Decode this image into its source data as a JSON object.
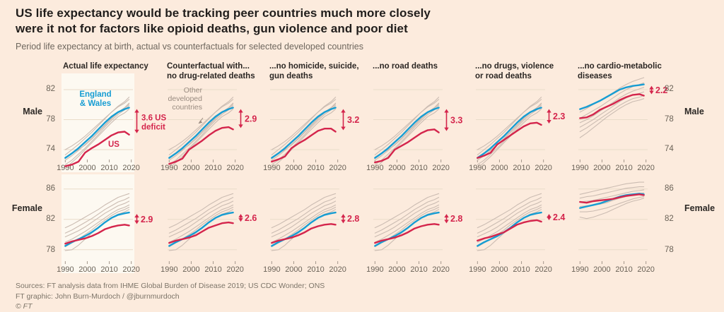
{
  "header": {
    "title_line1": "US life expectancy would be tracking peer countries much more closely",
    "title_line2": "were it not for factors like opioid deaths, gun violence and poor diet",
    "subtitle": "Period life expectancy at birth, actual vs counterfactuals for selected developed countries"
  },
  "footer": {
    "sources": "Sources: FT analysis data from IHME Global Burden of Disease 2019; US CDC Wonder; ONS",
    "credit": "FT graphic: John Burn-Murdoch / @jburnmurdoch",
    "copyright": "© FT"
  },
  "colors": {
    "background": "#fcebdd",
    "panel_highlight": "#fdf9f1",
    "us_line": "#d4254c",
    "england_wales_line": "#169dd3",
    "other_lines": "#cbbcb2",
    "gridline": "#e9dcc9",
    "tick": "#a3968a",
    "tick_label": "#6a6257",
    "annotation": "#d4254c",
    "others_label": "#998b80"
  },
  "chart_data": {
    "type": "line",
    "x": {
      "years": [
        1990,
        1993,
        1996,
        1999,
        2002,
        2005,
        2008,
        2011,
        2014,
        2017,
        2019
      ],
      "tick_years": [
        1990,
        2000,
        2010,
        2020
      ],
      "tick_labels": [
        "1990",
        "2000",
        "2010",
        "2020"
      ],
      "domain": [
        1989.25,
        2020.75
      ]
    },
    "series_labels": {
      "us": "US",
      "england_wales": "England & Wales",
      "others": "Other developed countries"
    },
    "columns": [
      {
        "title_lines": [
          "Actual life expectancy"
        ]
      },
      {
        "title_lines": [
          "Counterfactual with...",
          "no drug-related deaths"
        ]
      },
      {
        "title_lines": [
          "...no homicide, suicide,",
          "gun deaths"
        ]
      },
      {
        "title_lines": [
          "...no road deaths"
        ]
      },
      {
        "title_lines": [
          "...no drugs, violence",
          "or road deaths"
        ]
      },
      {
        "title_lines": [
          "...no cardio-metabolic",
          "diseases"
        ]
      }
    ],
    "rows": [
      {
        "label": "Male",
        "y_ticks": [
          82,
          78,
          74
        ],
        "ew_base": [
          72.9,
          73.5,
          74.2,
          75.0,
          75.8,
          76.7,
          77.6,
          78.4,
          79.0,
          79.4,
          79.6
        ],
        "ew_cardio": [
          79.4,
          79.7,
          80.1,
          80.5,
          81.0,
          81.5,
          82.0,
          82.3,
          82.5,
          82.6,
          82.7
        ],
        "others_base": [
          [
            73.3,
            74.0,
            74.7,
            75.5,
            76.3,
            77.2,
            78.1,
            79.0,
            79.8,
            80.4,
            81.0
          ],
          [
            72.6,
            73.2,
            73.9,
            74.7,
            75.5,
            76.4,
            77.3,
            78.2,
            79.0,
            79.6,
            80.2
          ],
          [
            74.0,
            74.5,
            75.1,
            75.8,
            76.6,
            77.4,
            78.2,
            79.0,
            79.7,
            80.2,
            80.7
          ],
          [
            72.0,
            72.6,
            73.4,
            74.2,
            75.1,
            76.0,
            77.0,
            77.9,
            78.7,
            79.3,
            79.9
          ],
          [
            73.0,
            73.5,
            74.0,
            74.6,
            75.4,
            76.3,
            77.2,
            78.1,
            78.9,
            79.5,
            80.1
          ],
          [
            71.5,
            72.3,
            73.1,
            74.0,
            74.9,
            75.8,
            76.7,
            77.6,
            78.4,
            78.9,
            79.4
          ]
        ],
        "others_cardio": [
          [
            79.0,
            79.5,
            80.0,
            80.5,
            81.0,
            81.6,
            82.2,
            82.7,
            83.1,
            83.4,
            83.6
          ],
          [
            78.2,
            78.7,
            79.2,
            79.7,
            80.3,
            80.9,
            81.5,
            82.0,
            82.4,
            82.7,
            82.9
          ],
          [
            77.6,
            78.0,
            78.5,
            79.1,
            79.7,
            80.3,
            80.9,
            81.4,
            81.8,
            82.1,
            82.3
          ],
          [
            77.0,
            77.5,
            78.0,
            78.6,
            79.2,
            79.8,
            80.4,
            80.9,
            81.3,
            81.5,
            81.7
          ],
          [
            76.4,
            76.9,
            77.5,
            78.1,
            78.7,
            79.3,
            79.9,
            80.4,
            80.8,
            81.0,
            81.2
          ],
          [
            75.6,
            76.2,
            76.9,
            77.6,
            78.3,
            78.9,
            79.5,
            80.0,
            80.4,
            80.6,
            80.8
          ]
        ],
        "panels": [
          {
            "us": [
              71.8,
              72.0,
              72.4,
              73.6,
              74.2,
              74.7,
              75.3,
              75.9,
              76.3,
              76.4,
              76.0
            ],
            "ew": "base",
            "others": "base",
            "deficit_lines": [
              "3.6 US",
              "deficit"
            ],
            "in_labels": {
              "ew_lines": [
                "England",
                "& Wales"
              ],
              "us": "US"
            }
          },
          {
            "us": [
              72.1,
              72.4,
              72.8,
              74.0,
              74.6,
              75.2,
              75.9,
              76.5,
              76.9,
              77.0,
              76.7
            ],
            "ew": "base",
            "others": "base",
            "deficit": "2.9",
            "in_labels": {
              "others_lines": [
                "Other",
                "developed",
                "countries"
              ]
            }
          },
          {
            "us": [
              72.4,
              72.7,
              73.1,
              74.2,
              74.8,
              75.3,
              75.9,
              76.5,
              76.8,
              76.8,
              76.4
            ],
            "ew": "base",
            "others": "base",
            "deficit": "3.2"
          },
          {
            "us": [
              72.3,
              72.5,
              72.9,
              74.0,
              74.5,
              75.0,
              75.6,
              76.2,
              76.6,
              76.7,
              76.3
            ],
            "ew": "base",
            "others": "base",
            "deficit": "3.3"
          },
          {
            "us": [
              72.9,
              73.2,
              73.6,
              74.7,
              75.3,
              75.9,
              76.5,
              77.1,
              77.5,
              77.6,
              77.3
            ],
            "ew": "base",
            "others": "base",
            "deficit": "2.3"
          },
          {
            "us": [
              78.2,
              78.3,
              78.7,
              79.3,
              79.7,
              80.1,
              80.6,
              81.0,
              81.3,
              81.4,
              81.2
            ],
            "ew": "cardio",
            "others": "cardio",
            "deficit": "2.2"
          }
        ]
      },
      {
        "label": "Female",
        "y_ticks": [
          86,
          82,
          78
        ],
        "ew_base": [
          78.5,
          79.0,
          79.4,
          79.8,
          80.3,
          80.9,
          81.6,
          82.2,
          82.6,
          82.8,
          82.9
        ],
        "ew_cardio": [
          83.5,
          83.7,
          83.9,
          84.1,
          84.4,
          84.7,
          85.0,
          85.2,
          85.3,
          85.4,
          85.3
        ],
        "others_base": [
          [
            80.9,
            81.3,
            81.8,
            82.3,
            82.8,
            83.3,
            83.9,
            84.4,
            84.9,
            85.2,
            85.4
          ],
          [
            80.2,
            80.6,
            81.1,
            81.6,
            82.1,
            82.7,
            83.3,
            83.8,
            84.3,
            84.6,
            84.9
          ],
          [
            79.7,
            80.1,
            80.5,
            81.0,
            81.6,
            82.2,
            82.8,
            83.3,
            83.8,
            84.1,
            84.4
          ],
          [
            79.0,
            79.4,
            79.9,
            80.4,
            81.0,
            81.6,
            82.2,
            82.8,
            83.3,
            83.6,
            83.9
          ],
          [
            78.4,
            78.9,
            79.4,
            80.0,
            80.6,
            81.3,
            81.9,
            82.5,
            83.0,
            83.3,
            83.6
          ],
          [
            77.9,
            78.0,
            78.6,
            79.4,
            80.2,
            80.9,
            81.6,
            82.2,
            82.7,
            83.0,
            83.3
          ]
        ],
        "others_cardio": [
          [
            85.3,
            85.5,
            85.7,
            85.9,
            86.1,
            86.3,
            86.5,
            86.7,
            86.8,
            86.9,
            86.9
          ],
          [
            84.8,
            85.0,
            85.1,
            85.3,
            85.5,
            85.7,
            85.9,
            86.1,
            86.2,
            86.3,
            86.3
          ],
          [
            84.3,
            84.4,
            84.5,
            84.7,
            84.9,
            85.1,
            85.3,
            85.5,
            85.7,
            85.8,
            85.9
          ],
          [
            83.7,
            83.8,
            83.9,
            84.0,
            84.2,
            84.5,
            84.8,
            85.0,
            85.2,
            85.4,
            85.5
          ],
          [
            83.0,
            83.0,
            83.1,
            83.3,
            83.5,
            83.8,
            84.1,
            84.4,
            84.7,
            84.9,
            85.0
          ],
          [
            82.3,
            82.1,
            82.3,
            82.6,
            82.9,
            83.3,
            83.7,
            84.1,
            84.4,
            84.6,
            84.8
          ]
        ],
        "panels": [
          {
            "us": [
              78.8,
              79.1,
              79.3,
              79.5,
              79.8,
              80.2,
              80.7,
              81.0,
              81.2,
              81.3,
              81.2
            ],
            "ew": "base",
            "others": "base",
            "deficit": "2.9"
          },
          {
            "us": [
              78.9,
              79.2,
              79.4,
              79.6,
              79.9,
              80.4,
              80.9,
              81.2,
              81.5,
              81.6,
              81.5
            ],
            "ew": "base",
            "others": "base",
            "deficit": "2.6"
          },
          {
            "us": [
              78.9,
              79.2,
              79.4,
              79.6,
              79.9,
              80.3,
              80.8,
              81.1,
              81.3,
              81.4,
              81.3
            ],
            "ew": "base",
            "others": "base",
            "deficit": "2.8"
          },
          {
            "us": [
              78.9,
              79.2,
              79.4,
              79.6,
              79.9,
              80.3,
              80.8,
              81.1,
              81.3,
              81.4,
              81.3
            ],
            "ew": "base",
            "others": "base",
            "deficit": "2.8"
          },
          {
            "us": [
              79.2,
              79.5,
              79.7,
              80.0,
              80.3,
              80.8,
              81.3,
              81.6,
              81.8,
              81.9,
              81.7
            ],
            "ew": "base",
            "others": "base",
            "deficit": "2.4"
          },
          {
            "us": [
              84.3,
              84.2,
              84.4,
              84.5,
              84.6,
              84.7,
              84.9,
              85.1,
              85.2,
              85.3,
              85.2
            ],
            "ew": "cardio",
            "others": "cardio"
          }
        ]
      }
    ]
  }
}
